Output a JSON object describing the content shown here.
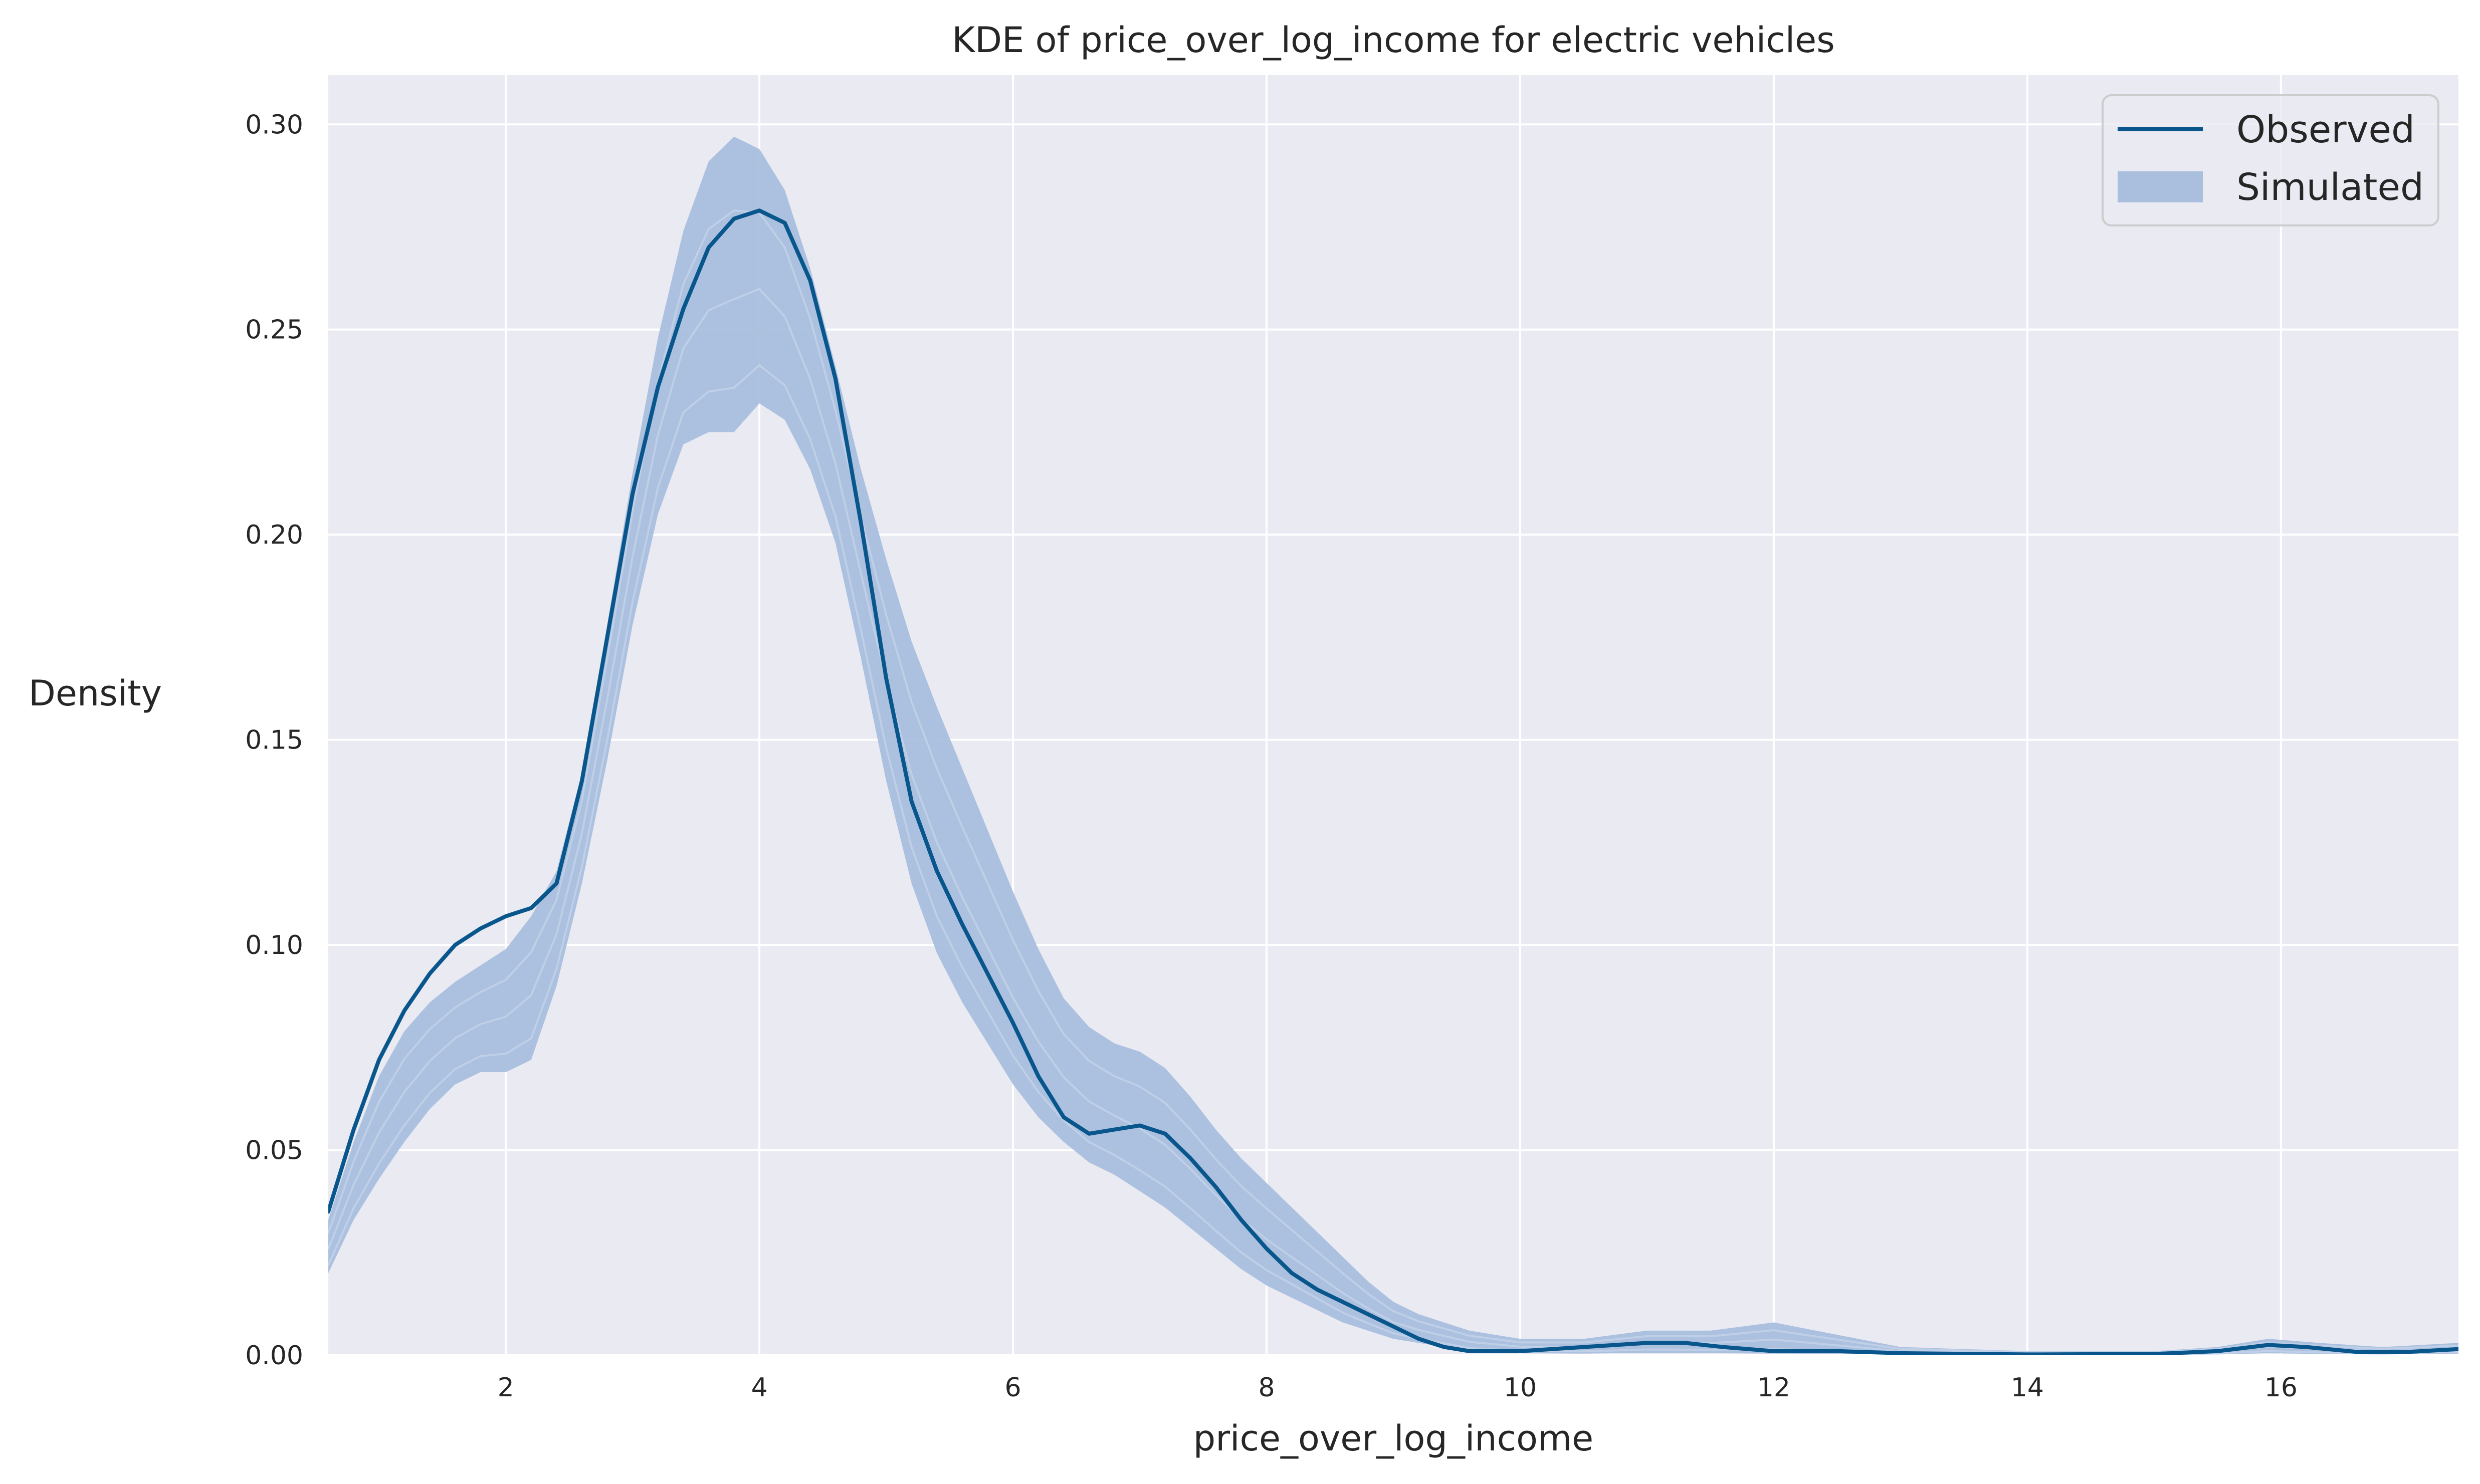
{
  "chart_data": {
    "type": "line",
    "title": "KDE of price_over_log_income for electric vehicles",
    "xlabel": "price_over_log_income",
    "ylabel": "Density",
    "xlim": [
      0.6,
      17.4
    ],
    "ylim": [
      0,
      0.312
    ],
    "xticks": [
      2,
      4,
      6,
      8,
      10,
      12,
      14,
      16
    ],
    "yticks": [
      0.0,
      0.05,
      0.1,
      0.15,
      0.2,
      0.25,
      0.3
    ],
    "ytick_labels": [
      "0.00",
      "0.05",
      "0.10",
      "0.15",
      "0.20",
      "0.25",
      "0.30"
    ],
    "grid": true,
    "legend_position": "top-right",
    "legend": [
      "Observed",
      "Simulated"
    ],
    "colors": {
      "observed": "#08568c",
      "simulated": "#a9bfdd",
      "background": "#eaeaf2",
      "grid": "#ffffff"
    },
    "series": [
      {
        "name": "Observed",
        "style": "line",
        "x": [
          0.6,
          0.8,
          1.0,
          1.2,
          1.4,
          1.6,
          1.8,
          2.0,
          2.2,
          2.4,
          2.6,
          2.8,
          3.0,
          3.2,
          3.4,
          3.6,
          3.8,
          4.0,
          4.2,
          4.4,
          4.6,
          4.8,
          5.0,
          5.2,
          5.4,
          5.6,
          5.8,
          6.0,
          6.2,
          6.4,
          6.6,
          6.8,
          7.0,
          7.2,
          7.4,
          7.6,
          7.8,
          8.0,
          8.2,
          8.4,
          8.6,
          8.8,
          9.0,
          9.2,
          9.4,
          9.6,
          9.8,
          10.0,
          10.5,
          11.0,
          11.3,
          11.6,
          12.0,
          12.5,
          13.0,
          14.0,
          15.0,
          15.5,
          15.9,
          16.2,
          16.6,
          17.0,
          17.4
        ],
        "y": [
          0.035,
          0.055,
          0.072,
          0.084,
          0.093,
          0.1,
          0.104,
          0.107,
          0.109,
          0.115,
          0.14,
          0.175,
          0.21,
          0.236,
          0.255,
          0.27,
          0.277,
          0.279,
          0.276,
          0.262,
          0.238,
          0.203,
          0.165,
          0.135,
          0.118,
          0.105,
          0.093,
          0.081,
          0.068,
          0.058,
          0.054,
          0.055,
          0.056,
          0.054,
          0.048,
          0.041,
          0.033,
          0.026,
          0.02,
          0.016,
          0.013,
          0.01,
          0.007,
          0.004,
          0.002,
          0.001,
          0.001,
          0.001,
          0.002,
          0.003,
          0.003,
          0.002,
          0.001,
          0.001,
          0.0005,
          0.0002,
          0.0003,
          0.001,
          0.0025,
          0.002,
          0.0008,
          0.0008,
          0.0015
        ]
      },
      {
        "name": "Simulated",
        "style": "band",
        "x": [
          0.6,
          0.8,
          1.0,
          1.2,
          1.4,
          1.6,
          1.8,
          2.0,
          2.2,
          2.4,
          2.6,
          2.8,
          3.0,
          3.2,
          3.4,
          3.6,
          3.8,
          4.0,
          4.2,
          4.4,
          4.6,
          4.8,
          5.0,
          5.2,
          5.4,
          5.6,
          5.8,
          6.0,
          6.2,
          6.4,
          6.6,
          6.8,
          7.0,
          7.2,
          7.4,
          7.6,
          7.8,
          8.0,
          8.2,
          8.4,
          8.6,
          8.8,
          9.0,
          9.2,
          9.4,
          9.6,
          9.8,
          10.0,
          10.5,
          11.0,
          11.5,
          12.0,
          12.5,
          13.0,
          14.0,
          15.0,
          15.5,
          15.9,
          16.3,
          16.8,
          17.4
        ],
        "y_low": [
          0.02,
          0.033,
          0.043,
          0.052,
          0.06,
          0.066,
          0.069,
          0.069,
          0.072,
          0.09,
          0.115,
          0.145,
          0.178,
          0.205,
          0.222,
          0.225,
          0.225,
          0.232,
          0.228,
          0.216,
          0.198,
          0.17,
          0.14,
          0.115,
          0.098,
          0.086,
          0.076,
          0.066,
          0.058,
          0.052,
          0.047,
          0.044,
          0.04,
          0.036,
          0.031,
          0.026,
          0.021,
          0.017,
          0.014,
          0.011,
          0.008,
          0.006,
          0.004,
          0.003,
          0.002,
          0.001,
          0.0008,
          0.0005,
          0.0004,
          0.0006,
          0.0005,
          0.0004,
          0.0003,
          0.0002,
          0.0001,
          0.0001,
          0.0002,
          0.0005,
          0.0003,
          0.0002,
          0.0004
        ],
        "y_high": [
          0.033,
          0.052,
          0.068,
          0.079,
          0.086,
          0.091,
          0.095,
          0.099,
          0.107,
          0.118,
          0.142,
          0.178,
          0.215,
          0.248,
          0.274,
          0.291,
          0.297,
          0.294,
          0.284,
          0.265,
          0.241,
          0.216,
          0.194,
          0.174,
          0.158,
          0.143,
          0.128,
          0.113,
          0.099,
          0.087,
          0.08,
          0.076,
          0.074,
          0.07,
          0.063,
          0.055,
          0.048,
          0.042,
          0.036,
          0.03,
          0.024,
          0.018,
          0.013,
          0.01,
          0.008,
          0.006,
          0.005,
          0.004,
          0.004,
          0.006,
          0.006,
          0.008,
          0.005,
          0.002,
          0.001,
          0.001,
          0.002,
          0.004,
          0.003,
          0.002,
          0.003
        ]
      }
    ]
  }
}
